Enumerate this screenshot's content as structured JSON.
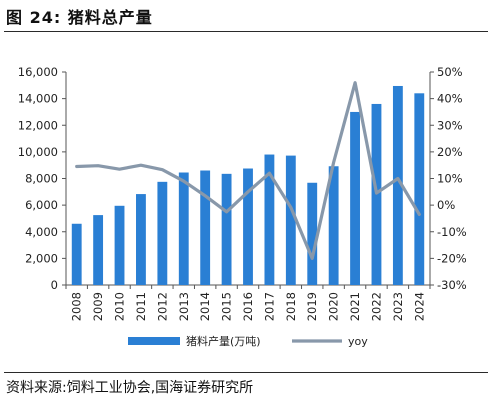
{
  "figure": {
    "title": "图 24:  猪料总产量",
    "source": "资料来源:饲料工业协会,国海证券研究所"
  },
  "chart_data": {
    "type": "bar",
    "categories": [
      "2008",
      "2009",
      "2010",
      "2011",
      "2012",
      "2013",
      "2014",
      "2015",
      "2016",
      "2017",
      "2018",
      "2019",
      "2020",
      "2021",
      "2022",
      "2023",
      "2024"
    ],
    "series": [
      {
        "name": "猪料产量(万吨)",
        "type": "bar",
        "axis": "left",
        "color": "#2a7fd4",
        "values": [
          4600,
          5250,
          5950,
          6830,
          7750,
          8450,
          8600,
          8350,
          8750,
          9800,
          9720,
          7680,
          8920,
          13000,
          13600,
          14950,
          14400
        ]
      },
      {
        "name": "yoy",
        "type": "line",
        "axis": "right",
        "color": "#8898aa",
        "values": [
          14.5,
          14.8,
          13.5,
          15.0,
          13.3,
          9.0,
          3.5,
          -2.5,
          5.0,
          12.0,
          -0.8,
          -20.0,
          16.0,
          46.0,
          4.5,
          10.0,
          -3.5
        ]
      }
    ],
    "y_left": {
      "min": 0,
      "max": 16000,
      "ticks": [
        "0",
        "2,000",
        "4,000",
        "6,000",
        "8,000",
        "10,000",
        "12,000",
        "14,000",
        "16,000"
      ]
    },
    "y_right": {
      "min": -30,
      "max": 50,
      "ticks": [
        "-30%",
        "-20%",
        "-10%",
        "0%",
        "10%",
        "20%",
        "30%",
        "40%",
        "50%"
      ]
    },
    "grid": false,
    "legend_position": "bottom"
  }
}
